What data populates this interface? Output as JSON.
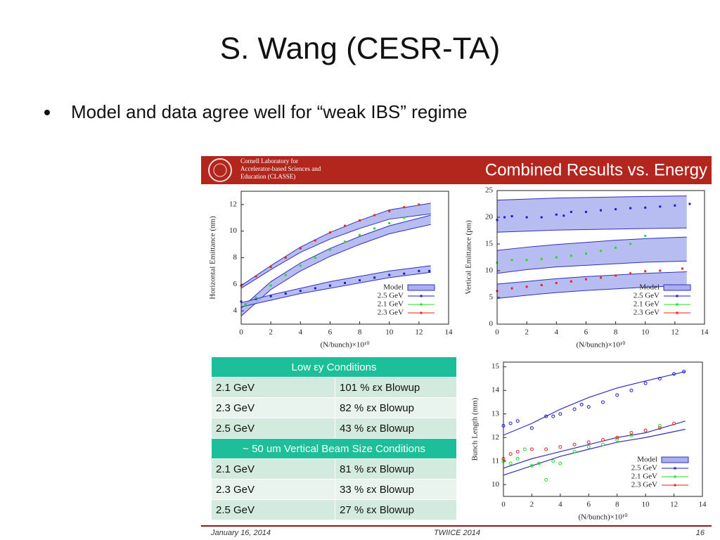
{
  "title": "S. Wang (CESR-TA)",
  "bullet": "Model and data agree well for “weak IBS” regime",
  "banner": {
    "org": [
      "Cornell Laboratory for",
      "Accelerator-based Sciences and",
      "Education (CLASSE)"
    ],
    "heading": "Combined Results vs. Energy"
  },
  "table": {
    "sections": [
      {
        "header": "Low εy Conditions",
        "rows": [
          [
            "2.1 GeV",
            "101 % εx Blowup"
          ],
          [
            "2.3 GeV",
            "82 % εx Blowup"
          ],
          [
            "2.5 GeV",
            "43 % εx Blowup"
          ]
        ]
      },
      {
        "header": "~ 50 um Vertical Beam Size Conditions",
        "rows": [
          [
            "2.1 GeV",
            "81 % εx Blowup"
          ],
          [
            "2.3 GeV",
            "33 % εx Blowup"
          ],
          [
            "2.5 GeV",
            "27 % εx Blowup"
          ]
        ]
      }
    ]
  },
  "footer": {
    "date": "January 16, 2014",
    "event": "TWIICE 2014",
    "page": "16"
  },
  "chart_data": [
    {
      "type": "scatter",
      "ylabel": "Horizontal Emittance (nm)",
      "xlabel": "(N/bunch)×10¹⁰",
      "xlim": [
        0,
        14
      ],
      "ylim": [
        3,
        13
      ],
      "xticks": [
        0,
        2,
        4,
        6,
        8,
        10,
        12,
        14
      ],
      "yticks": [
        4,
        6,
        8,
        10,
        12
      ],
      "legend": "bottom-right",
      "model": {
        "name": "Model",
        "color": "#aab0ee",
        "x": [
          0,
          2,
          4,
          6,
          8,
          10,
          12.8
        ],
        "bands": [
          {
            "upper": [
              5.9,
              7.4,
              8.8,
              9.9,
              10.8,
              11.6,
              12.1
            ],
            "lower": [
              5.7,
              7.1,
              8.4,
              9.4,
              10.2,
              10.9,
              11.3
            ]
          },
          {
            "upper": [
              4.2,
              6.2,
              7.6,
              8.7,
              9.6,
              10.4,
              11.2
            ],
            "lower": [
              3.6,
              5.6,
              7.0,
              8.1,
              9.0,
              9.8,
              10.5
            ]
          },
          {
            "upper": [
              4.6,
              5.2,
              5.7,
              6.2,
              6.6,
              7.0,
              7.4
            ],
            "lower": [
              4.3,
              4.8,
              5.3,
              5.7,
              6.1,
              6.5,
              6.9
            ]
          }
        ]
      },
      "series": [
        {
          "name": "2.5 GeV",
          "color": "#1a1ad0",
          "x": [
            0,
            1,
            2,
            3,
            4,
            5,
            6,
            7,
            8,
            9,
            10,
            11,
            12,
            12.7
          ],
          "values": [
            4.7,
            4.9,
            5.1,
            5.3,
            5.5,
            5.7,
            5.9,
            6.1,
            6.3,
            6.5,
            6.7,
            6.8,
            7.0,
            7.0
          ]
        },
        {
          "name": "2.1 GeV",
          "color": "#22dd22",
          "x": [
            0.3,
            1,
            2,
            3,
            4,
            5,
            6,
            7,
            8,
            9,
            10,
            11
          ],
          "values": [
            4.5,
            5.0,
            5.9,
            6.7,
            7.4,
            8.0,
            8.6,
            9.2,
            9.7,
            10.2,
            10.6,
            11.0
          ]
        },
        {
          "name": "2.3 GeV",
          "color": "#ee2222",
          "x": [
            0,
            1,
            2,
            3,
            4,
            5,
            6,
            7,
            8,
            9,
            10,
            11,
            12
          ],
          "values": [
            5.9,
            6.6,
            7.3,
            8.0,
            8.7,
            9.3,
            9.9,
            10.4,
            10.8,
            11.2,
            11.5,
            11.8,
            12.0
          ]
        }
      ]
    },
    {
      "type": "scatter",
      "ylabel": "Vertical Emittance (pm)",
      "xlabel": "(N/bunch)×10¹⁰",
      "xlim": [
        0,
        14
      ],
      "ylim": [
        0,
        25
      ],
      "xticks": [
        0,
        2,
        4,
        6,
        8,
        10,
        12,
        14
      ],
      "yticks": [
        0,
        5,
        10,
        15,
        20,
        25
      ],
      "legend": "bottom-right",
      "model": {
        "name": "Model",
        "color": "#aab0ee",
        "x": [
          0,
          2,
          4,
          6,
          8,
          10,
          12.8
        ],
        "bands": [
          {
            "upper": [
              23.2,
              23.4,
              23.6,
              23.7,
              23.8,
              23.9,
              24
            ],
            "lower": [
              17.2,
              17.4,
              17.6,
              17.7,
              17.8,
              17.9,
              18
            ]
          },
          {
            "upper": [
              13.8,
              14.4,
              14.9,
              15.3,
              15.7,
              16,
              16.3
            ],
            "lower": [
              9.5,
              10.2,
              10.7,
              11,
              11.3,
              11.6,
              11.8
            ]
          },
          {
            "upper": [
              7.5,
              8,
              8.5,
              8.9,
              9.2,
              9.5,
              9.8
            ],
            "lower": [
              4.8,
              5.4,
              5.9,
              6.3,
              6.6,
              6.9,
              7.2
            ]
          }
        ]
      },
      "series": [
        {
          "name": "2.5 GeV",
          "color": "#1a1ad0",
          "x": [
            0,
            0.5,
            1,
            2,
            3,
            4,
            4.5,
            5,
            6,
            7,
            8,
            9,
            10,
            11,
            12,
            13
          ],
          "values": [
            19.5,
            20,
            20.2,
            20,
            20,
            20.5,
            20.3,
            21,
            21,
            21.3,
            21.5,
            21.7,
            21.8,
            22,
            22.2,
            22.5
          ]
        },
        {
          "name": "2.1 GeV",
          "color": "#22dd22",
          "x": [
            0,
            1,
            2,
            3,
            4,
            5,
            6,
            7,
            8,
            9,
            10
          ],
          "values": [
            11.5,
            12,
            12,
            12.2,
            12.5,
            12.8,
            13.2,
            13.7,
            14.3,
            15,
            16.5
          ]
        },
        {
          "name": "2.3 GeV",
          "color": "#ee2222",
          "x": [
            0,
            1,
            2,
            3,
            4,
            5,
            6,
            7,
            8,
            9,
            10,
            11,
            12.5
          ],
          "values": [
            6.2,
            6.7,
            7,
            7.3,
            7.7,
            8,
            8.4,
            8.7,
            9.1,
            9.5,
            9.9,
            10,
            10.4
          ]
        }
      ]
    },
    {
      "type": "scatter",
      "ylabel": "Bunch Length (mm)",
      "xlabel": "(N/bunch)×10¹⁰",
      "xlim": [
        0,
        14
      ],
      "ylim": [
        9.5,
        15.2
      ],
      "xticks": [
        0,
        2,
        4,
        6,
        8,
        10,
        12,
        14
      ],
      "yticks": [
        10,
        11,
        12,
        13,
        14,
        15
      ],
      "legend": "bottom-right",
      "model": {
        "name": "Model",
        "color": "#aab0ee",
        "x": [
          0,
          2,
          4,
          6,
          8,
          10,
          12.8
        ],
        "curves": [
          [
            12.1,
            12.6,
            13.2,
            13.7,
            14.1,
            14.4,
            14.8
          ],
          [
            10.7,
            11.1,
            11.4,
            11.7,
            12,
            12.2,
            12.7
          ],
          [
            10.4,
            10.8,
            11.2,
            11.5,
            11.8,
            12,
            12.35
          ]
        ]
      },
      "series": [
        {
          "name": "2.5 GeV",
          "color": "#1a1ad0",
          "x": [
            0,
            0.5,
            1,
            2,
            3,
            3.5,
            4,
            5,
            5.5,
            6,
            7,
            8,
            9,
            10,
            11,
            12,
            12.7
          ],
          "values": [
            12.5,
            12.6,
            12.7,
            12.4,
            12.9,
            12.9,
            13,
            13.2,
            13.4,
            13.3,
            13.5,
            13.8,
            14,
            14.3,
            14.5,
            14.7,
            14.8
          ]
        },
        {
          "name": "2.1 GeV",
          "color": "#22dd22",
          "x": [
            0,
            0.5,
            1,
            1.5,
            2,
            2.5,
            3,
            3.5,
            4,
            5,
            6,
            7,
            8,
            9,
            10,
            11
          ],
          "values": [
            11,
            10.9,
            11.1,
            11.5,
            10.8,
            10.9,
            10.2,
            11,
            10.9,
            11.4,
            11.6,
            11.7,
            11.9,
            12.1,
            12.3,
            12.5
          ]
        },
        {
          "name": "2.3 GeV",
          "color": "#ee2222",
          "x": [
            0,
            0.5,
            1,
            2,
            3,
            4,
            5,
            6,
            7,
            8,
            9,
            10,
            11,
            12
          ],
          "values": [
            11.1,
            11.3,
            11.4,
            11.5,
            11.5,
            11.6,
            11.7,
            11.8,
            11.9,
            12,
            12.2,
            12.3,
            12.4,
            12.6
          ]
        }
      ]
    }
  ]
}
